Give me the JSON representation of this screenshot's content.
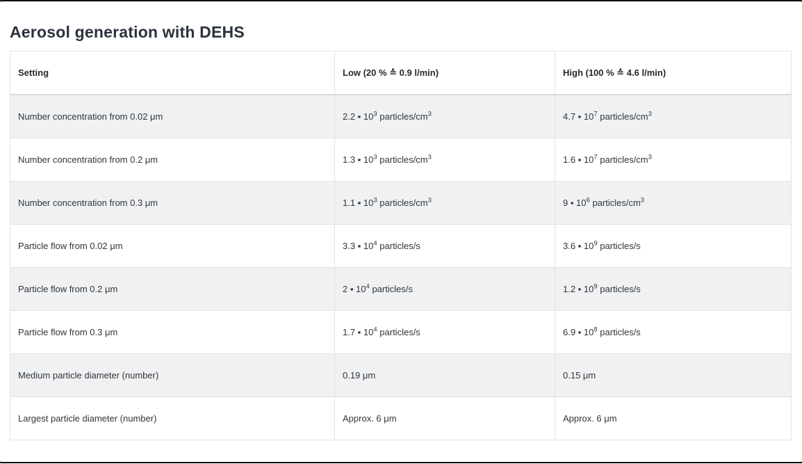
{
  "title": "Aerosol generation with DEHS",
  "table": {
    "columns": [
      "Setting",
      "Low (20 % ≙ 0.9 l/min)",
      "High (100 % ≙ 4.6 l/min)"
    ],
    "rows": [
      [
        "Number concentration from 0.02 μm",
        "2.2 ▪ 10^{3} particles/cm^{3}",
        "4.7 ▪ 10^{7} particles/cm^{3}"
      ],
      [
        "Number concentration from 0.2 μm",
        "1.3 ▪ 10^{3} particles/cm^{3}",
        "1.6 ▪ 10^{7} particles/cm^{3}"
      ],
      [
        "Number concentration from 0.3 μm",
        "1.1 ▪ 10^{3} particles/cm^{3}",
        "9 ▪ 10^{6} particles/cm^{3}"
      ],
      [
        "Particle flow from 0.02 μm",
        "3.3 ▪ 10^{4} particles/s",
        "3.6 ▪ 10^{9} particles/s"
      ],
      [
        "Particle flow from 0.2 μm",
        "2 ▪ 10^{4} particles/s",
        "1.2 ▪ 10^{9} particles/s"
      ],
      [
        "Particle flow from 0.3 μm",
        "1.7 ▪ 10^{4} particles/s",
        "6.9 ▪ 10^{8} particles/s"
      ],
      [
        "Medium particle diameter (number)",
        "0.19 μm",
        "0.15 μm"
      ],
      [
        "Largest particle diameter (number)",
        "Approx. 6 μm",
        "Approx. 6 μm"
      ]
    ]
  }
}
